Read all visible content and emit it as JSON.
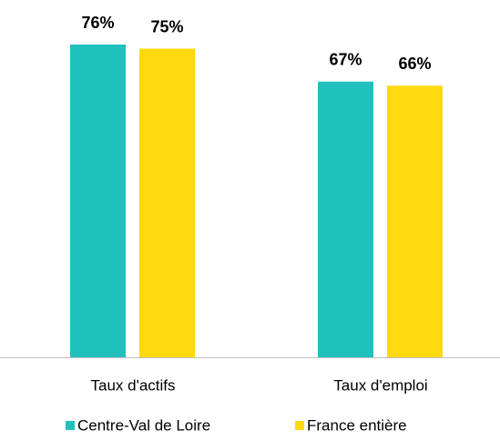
{
  "chart_data": {
    "type": "bar",
    "categories": [
      "Taux d'actifs",
      "Taux d'emploi"
    ],
    "series": [
      {
        "name": "Centre-Val de Loire",
        "color": "#20c1bd",
        "values": [
          76,
          67
        ],
        "value_labels": [
          "76%",
          "67%"
        ]
      },
      {
        "name": "France entière",
        "color": "#ffd90f",
        "values": [
          75,
          66
        ],
        "value_labels": [
          "75%",
          "66%"
        ]
      }
    ]
  }
}
